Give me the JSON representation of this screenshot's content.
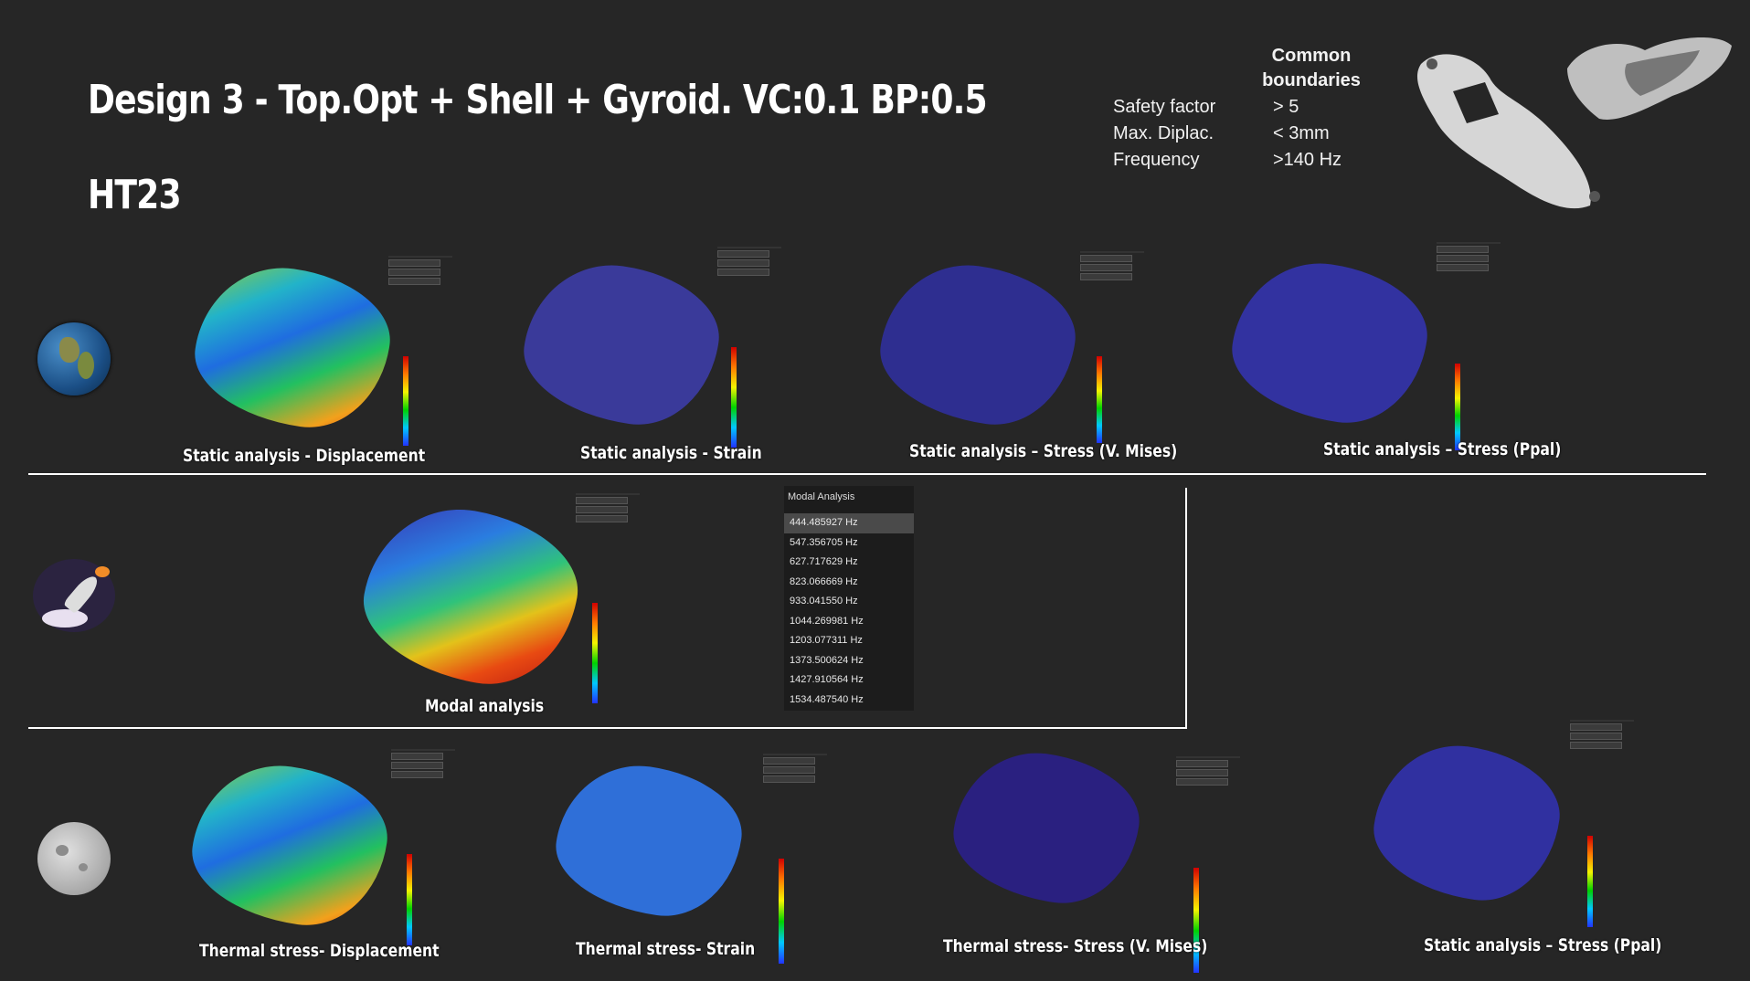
{
  "title": "Design 3 - Top.Opt + Shell + Gyroid. VC:0.1 BP:0.5",
  "subtitle": "HT23",
  "boundaries": {
    "heading_line1": "Common",
    "heading_line2": "boundaries",
    "rows": [
      {
        "label": "Safety factor",
        "value": "> 5"
      },
      {
        "label": "Max. Diplac.",
        "value": "< 3mm"
      },
      {
        "label": "Frequency",
        "value": ">140 Hz"
      }
    ]
  },
  "row_icons": [
    "earth-icon",
    "rocket-icon",
    "moon-icon"
  ],
  "captions": {
    "earth": [
      "Static analysis - Displacement",
      "Static analysis - Strain",
      "Static analysis – Stress (V. Mises)",
      "Static analysis – Stress (Ppal)"
    ],
    "modal": "Modal analysis",
    "moon": [
      "Thermal stress- Displacement",
      "Thermal stress- Strain",
      "Thermal stress- Stress (V. Mises)",
      "Static analysis – Stress (Ppal)"
    ]
  },
  "modal_analysis": {
    "title": "Modal Analysis",
    "frequencies": [
      "444.485927 Hz",
      "547.356705 Hz",
      "627.717629 Hz",
      "823.066669 Hz",
      "933.041550 Hz",
      "1044.269981 Hz",
      "1203.077311 Hz",
      "1373.500624 Hz",
      "1427.910564 Hz",
      "1534.487540 Hz"
    ],
    "selected_index": 0
  },
  "colors": {
    "background": "#262626",
    "divider": "#ffffff",
    "selected_row": "#4a4a4a"
  }
}
